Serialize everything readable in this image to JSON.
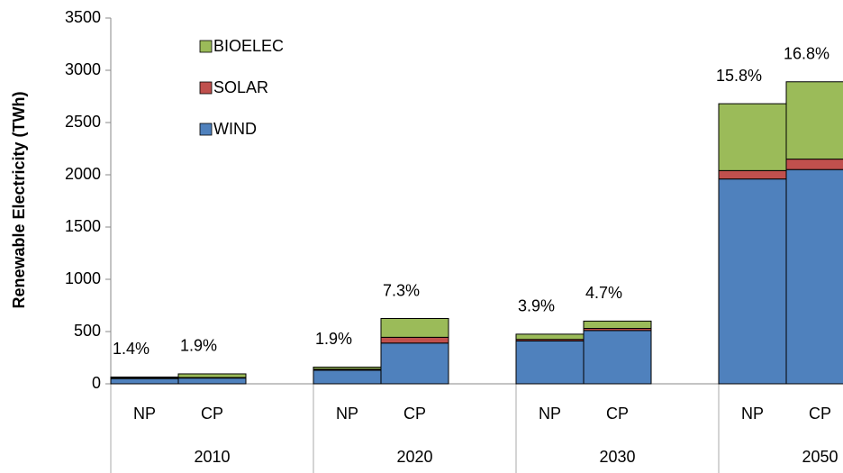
{
  "chart_data": {
    "type": "stacked_bar",
    "y_label": "Renewable Electricity (TWh)",
    "groups": [
      "2010",
      "2020",
      "2030",
      "2050"
    ],
    "categories": [
      "NP",
      "CP",
      "NP",
      "CP",
      "NP",
      "CP",
      "NP",
      "CP"
    ],
    "series": [
      {
        "name": "WIND",
        "color": "#4f81bd",
        "values": [
          50,
          55,
          130,
          390,
          410,
          510,
          1960,
          2050
        ]
      },
      {
        "name": "SOLAR",
        "color": "#c0504d",
        "values": [
          5,
          5,
          10,
          55,
          15,
          20,
          80,
          100
        ]
      },
      {
        "name": "BIOELEC",
        "color": "#9bbb59",
        "values": [
          10,
          35,
          20,
          180,
          50,
          70,
          640,
          740
        ]
      }
    ],
    "annotations": [
      "1.4%",
      "1.9%",
      "1.9%",
      "7.3%",
      "3.9%",
      "4.7%",
      "15.8%",
      "16.8%"
    ],
    "ylim": [
      0,
      3500
    ],
    "yticks": [
      0,
      500,
      1000,
      1500,
      2000,
      2500,
      3000,
      3500
    ],
    "grid": false
  }
}
